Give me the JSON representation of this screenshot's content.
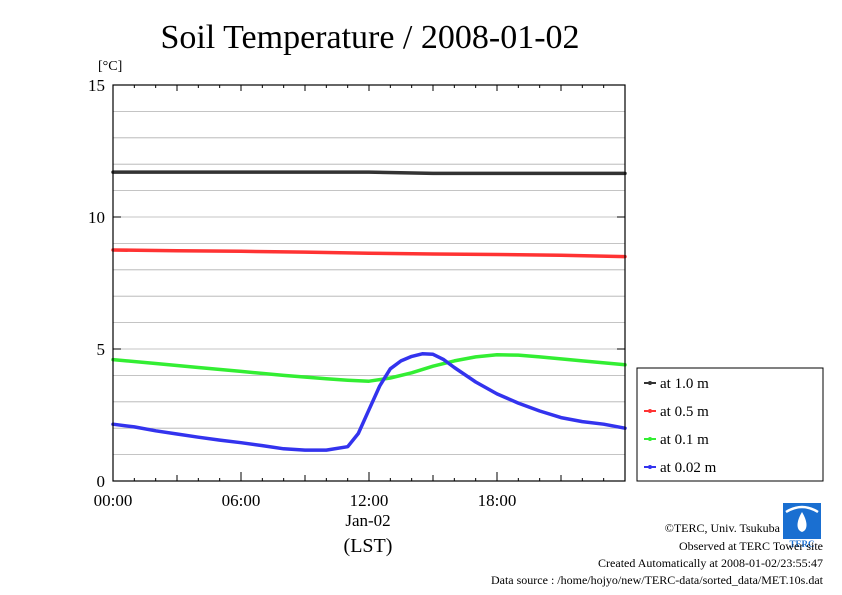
{
  "chart_data": {
    "type": "line",
    "title": "Soil Temperature / 2008-01-02",
    "ylabel": "[°C]",
    "ylim": [
      0,
      15
    ],
    "yticks": [
      0,
      5,
      10,
      15
    ],
    "xlim": [
      0,
      24
    ],
    "xticks": [
      {
        "value": 0,
        "label": "00:00"
      },
      {
        "value": 6,
        "label": "06:00"
      },
      {
        "value": 12,
        "label": "12:00"
      },
      {
        "value": 18,
        "label": "18:00"
      }
    ],
    "date_label": "Jan-02",
    "timezone_label": "(LST)",
    "grid": true,
    "legend_position": "right",
    "series": [
      {
        "name": "at 1.0 m",
        "color": "#333333",
        "x": [
          0,
          3,
          6,
          9,
          12,
          15,
          18,
          21,
          24
        ],
        "y": [
          11.7,
          11.7,
          11.7,
          11.7,
          11.7,
          11.65,
          11.65,
          11.65,
          11.65
        ]
      },
      {
        "name": "at 0.5 m",
        "color": "#ff3333",
        "x": [
          0,
          3,
          6,
          9,
          12,
          15,
          18,
          21,
          24
        ],
        "y": [
          8.75,
          8.72,
          8.7,
          8.67,
          8.63,
          8.6,
          8.58,
          8.55,
          8.5
        ]
      },
      {
        "name": "at 0.1 m",
        "color": "#33ee33",
        "x": [
          0,
          2,
          4,
          6,
          8,
          10,
          11,
          12,
          13,
          14,
          15,
          16,
          17,
          18,
          19,
          20,
          22,
          24
        ],
        "y": [
          4.6,
          4.45,
          4.3,
          4.15,
          4.0,
          3.87,
          3.82,
          3.78,
          3.9,
          4.1,
          4.35,
          4.55,
          4.7,
          4.78,
          4.77,
          4.7,
          4.55,
          4.4
        ]
      },
      {
        "name": "at 0.02 m",
        "color": "#3333ee",
        "x": [
          0,
          1,
          2,
          3,
          4,
          5,
          6,
          7,
          8,
          9,
          10,
          11,
          11.5,
          12,
          12.5,
          13,
          13.5,
          14,
          14.5,
          15,
          15.5,
          16,
          17,
          18,
          19,
          20,
          21,
          22,
          23,
          24
        ],
        "y": [
          2.15,
          2.05,
          1.9,
          1.78,
          1.66,
          1.55,
          1.45,
          1.34,
          1.22,
          1.17,
          1.17,
          1.3,
          1.8,
          2.7,
          3.6,
          4.25,
          4.55,
          4.72,
          4.82,
          4.8,
          4.6,
          4.3,
          3.75,
          3.3,
          2.95,
          2.65,
          2.4,
          2.25,
          2.15,
          2.0
        ]
      }
    ]
  },
  "credits": {
    "logo_label": "TERC",
    "line1": "©TERC, Univ. Tsukuba",
    "line2": "Observed at TERC Tower site",
    "line3": "Created Automatically at 2008-01-02/23:55:47",
    "line4": "Data source : /home/hojyo/new/TERC-data/sorted_data/MET.10s.dat"
  }
}
